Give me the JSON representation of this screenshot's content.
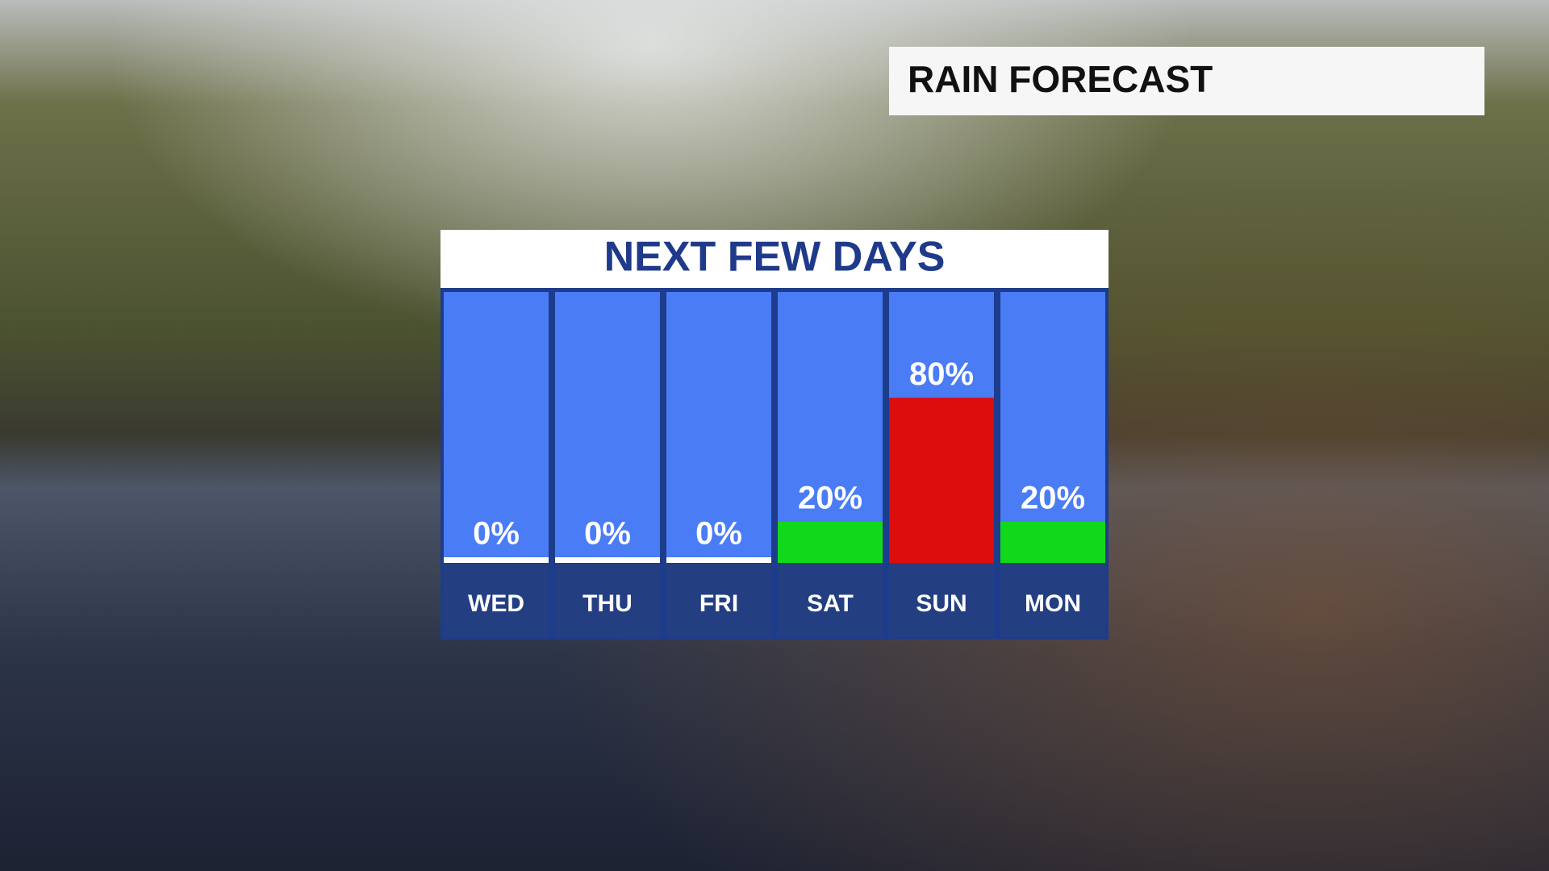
{
  "header": {
    "title": "RAIN FORECAST"
  },
  "chart_data": {
    "type": "bar",
    "title": "NEXT FEW DAYS",
    "categories": [
      "WED",
      "THU",
      "FRI",
      "SAT",
      "SUN",
      "MON"
    ],
    "values": [
      0,
      0,
      0,
      20,
      80,
      20
    ],
    "value_labels": [
      "0%",
      "0%",
      "0%",
      "20%",
      "80%",
      "20%"
    ],
    "colors": [
      "#ffffff",
      "#ffffff",
      "#ffffff",
      "#12d81c",
      "#dd0d0d",
      "#12d81c"
    ],
    "ylim": [
      0,
      100
    ]
  }
}
